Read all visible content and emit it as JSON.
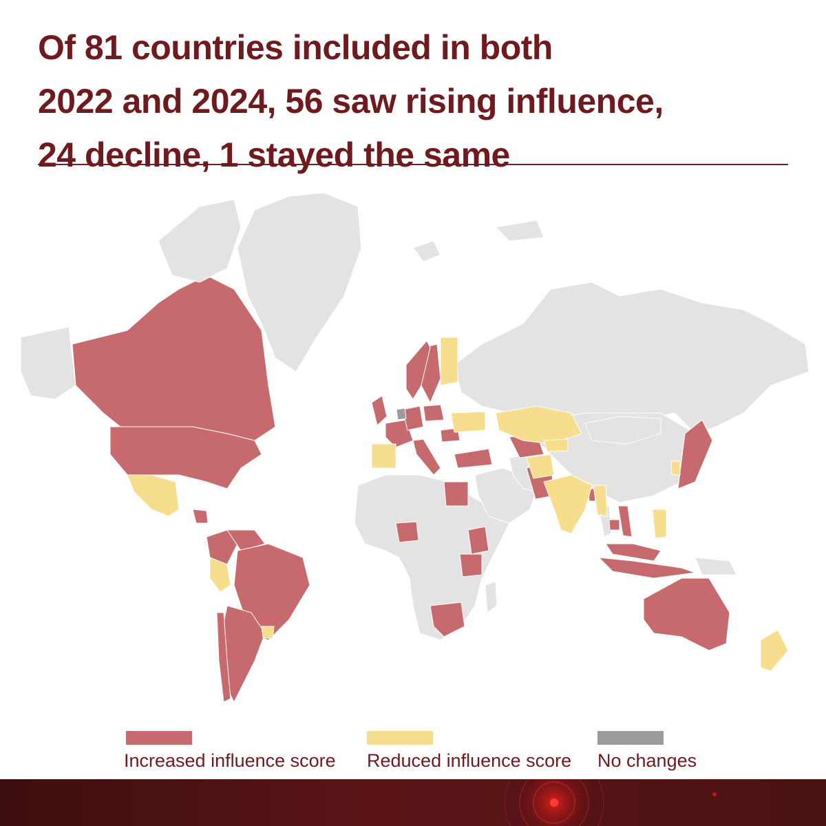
{
  "title": {
    "line1": "Of 81 countries included in both",
    "line2": "2022 and 2024, 56 saw rising influence,",
    "line3": "24 decline, 1 stayed the same"
  },
  "legend": [
    {
      "label": "Increased influence score",
      "color": "#c76a6e"
    },
    {
      "label": "Reduced influence score",
      "color": "#f7de8f"
    },
    {
      "label": "No changes",
      "color": "#9b9b9b"
    }
  ],
  "colors": {
    "increased": "#c76a6e",
    "reduced": "#f7de8f",
    "no_change": "#9b9b9b",
    "not_included": "#e3e3e3",
    "title": "#6e1a1e"
  },
  "map_data": {
    "type": "choropleth",
    "increased": [
      "Canada",
      "United States",
      "Brazil",
      "Argentina",
      "Colombia",
      "Chile",
      "Venezuela",
      "Guatemala",
      "United Kingdom",
      "France",
      "Germany",
      "Poland",
      "Sweden",
      "Norway",
      "Italy",
      "Romania",
      "Turkey",
      "Egypt",
      "Kenya",
      "Nigeria",
      "Tanzania",
      "South Africa",
      "Pakistan",
      "Uzbekistan",
      "Bangladesh",
      "Vietnam",
      "Cambodia",
      "Malaysia",
      "Indonesia",
      "Japan",
      "Australia"
    ],
    "reduced": [
      "Mexico",
      "Peru",
      "Uruguay",
      "Spain",
      "Finland",
      "Ukraine",
      "Kazakhstan",
      "Kyrgyzstan",
      "Afghanistan",
      "India",
      "Myanmar",
      "Philippines",
      "South Korea",
      "New Zealand"
    ],
    "no_change": [
      "Netherlands"
    ]
  }
}
